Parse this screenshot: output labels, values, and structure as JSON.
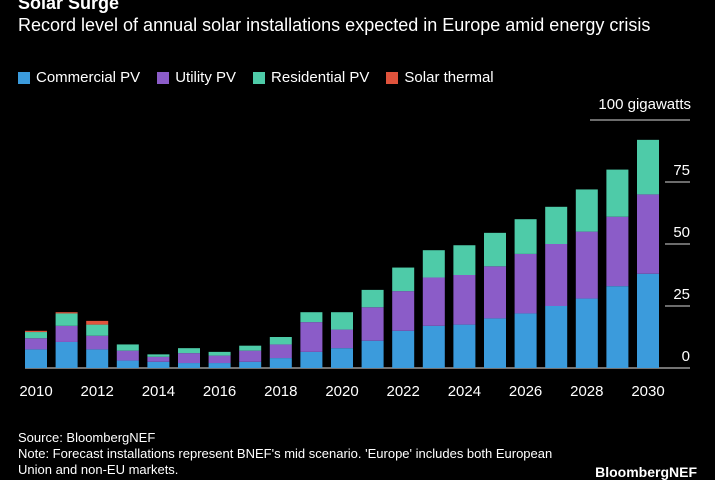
{
  "title": "Solar Surge",
  "subtitle": "Record level of annual solar installations expected in Europe amid energy crisis",
  "source": "Source: BloombergNEF",
  "note": "Note: Forecast installations represent BNEF's mid scenario. 'Europe' includes both European Union and non-EU markets.",
  "brand": "BloombergNEF",
  "colors": {
    "Commercial PV": "#3b9bdc",
    "Utility PV": "#8b5cc8",
    "Residential PV": "#4ecba8",
    "Solar thermal": "#e0533c",
    "background": "#000000",
    "text": "#ffffff"
  },
  "chart_data": {
    "type": "bar",
    "stacked": true,
    "unit_label": "100 gigawatts",
    "categories": [
      "2010",
      "2011",
      "2012",
      "2013",
      "2014",
      "2015",
      "2016",
      "2017",
      "2018",
      "2019",
      "2020",
      "2021",
      "2022",
      "2023",
      "2024",
      "2025",
      "2026",
      "2027",
      "2028",
      "2029",
      "2030"
    ],
    "x_tick_labels": [
      "2010",
      "2012",
      "2014",
      "2016",
      "2018",
      "2020",
      "2022",
      "2024",
      "2026",
      "2028",
      "2030"
    ],
    "series": [
      {
        "name": "Commercial PV",
        "values": [
          7.5,
          10.5,
          7.5,
          3,
          2.5,
          2,
          2,
          2.5,
          4,
          6.5,
          8,
          11,
          15,
          17,
          17.5,
          20,
          22,
          25,
          28,
          33,
          38
        ]
      },
      {
        "name": "Utility PV",
        "values": [
          4.5,
          6.5,
          5.5,
          4,
          2,
          4,
          3,
          4.5,
          5.5,
          12,
          7.5,
          13.5,
          16,
          19.5,
          20,
          21,
          24,
          25,
          27,
          28,
          32
        ]
      },
      {
        "name": "Residential PV",
        "values": [
          2.5,
          5,
          4.5,
          2.5,
          1,
          2,
          1.5,
          2,
          3,
          4,
          7,
          7,
          9.5,
          11,
          12,
          13.5,
          14,
          15,
          17,
          19,
          22
        ]
      },
      {
        "name": "Solar thermal",
        "values": [
          0.5,
          0.5,
          1.5,
          0,
          0,
          0,
          0,
          0,
          0,
          0,
          0,
          0,
          0,
          0,
          0,
          0,
          0,
          0,
          0,
          0,
          0
        ]
      }
    ],
    "ylim": [
      0,
      100
    ],
    "y_ticks": [
      0,
      25,
      50,
      75
    ],
    "grid": true,
    "y_axis_side": "right",
    "legend_position": "top-left"
  }
}
